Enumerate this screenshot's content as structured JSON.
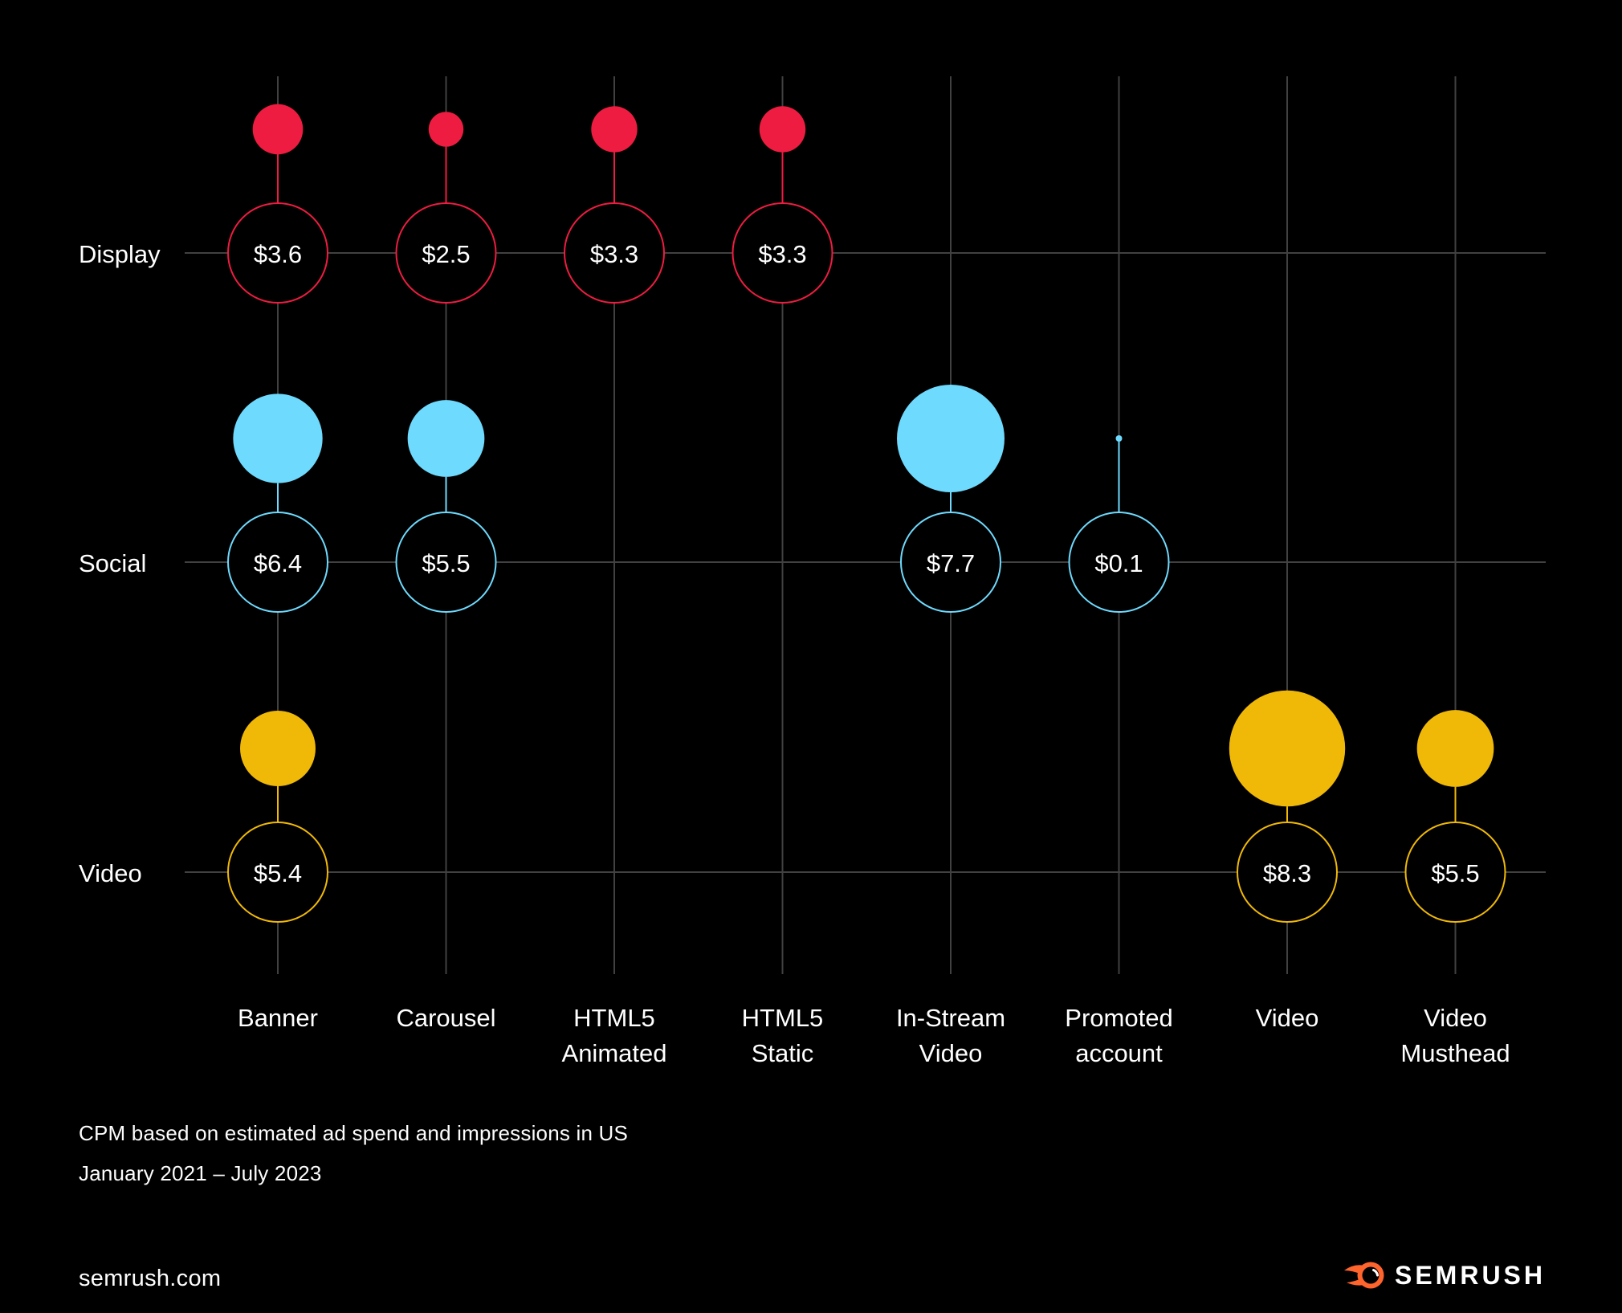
{
  "page": {
    "background": "#000000",
    "site_text": "semrush.com",
    "brand_text": "SEMRUSH",
    "brand_orange": "#ff642d"
  },
  "chart_data": {
    "type": "scatter",
    "subtype": "bubble-lollipop",
    "title": "",
    "unit_prefix": "$",
    "legend_position": "none",
    "grid": true,
    "y_categories": [
      "Display",
      "Social",
      "Video"
    ],
    "x_categories": [
      [
        "Banner"
      ],
      [
        "Carousel"
      ],
      [
        "HTML5",
        "Animated"
      ],
      [
        "HTML5",
        "Static"
      ],
      [
        "In-Stream",
        "Video"
      ],
      [
        "Promoted",
        "account"
      ],
      [
        "Video"
      ],
      [
        "Video",
        "Musthead"
      ]
    ],
    "series": [
      {
        "name": "Display",
        "color": "#ee1c41",
        "points": [
          {
            "category": "Banner",
            "col": 0,
            "value": 3.6,
            "label": "$3.6"
          },
          {
            "category": "Carousel",
            "col": 1,
            "value": 2.5,
            "label": "$2.5"
          },
          {
            "category": "HTML5 Animated",
            "col": 2,
            "value": 3.3,
            "label": "$3.3"
          },
          {
            "category": "HTML5 Static",
            "col": 3,
            "value": 3.3,
            "label": "$3.3"
          }
        ]
      },
      {
        "name": "Social",
        "color": "#6edafd",
        "points": [
          {
            "category": "Banner",
            "col": 0,
            "value": 6.4,
            "label": "$6.4"
          },
          {
            "category": "Carousel",
            "col": 1,
            "value": 5.5,
            "label": "$5.5"
          },
          {
            "category": "In-Stream Video",
            "col": 4,
            "value": 7.7,
            "label": "$7.7"
          },
          {
            "category": "Promoted account",
            "col": 5,
            "value": 0.1,
            "label": "$0.1"
          }
        ]
      },
      {
        "name": "Video",
        "color": "#f0b908",
        "points": [
          {
            "category": "Banner",
            "col": 0,
            "value": 5.4,
            "label": "$5.4"
          },
          {
            "category": "Video",
            "col": 6,
            "value": 8.3,
            "label": "$8.3"
          },
          {
            "category": "Video Musthead",
            "col": 7,
            "value": 5.5,
            "label": "$5.5"
          }
        ]
      }
    ],
    "footnote_line1": "CPM based on estimated ad spend and impressions in US",
    "footnote_line2": "January 2021 – July 2023",
    "colors": {
      "grid_line": "#414141",
      "text": "#ffffff",
      "background": "#000000"
    }
  }
}
